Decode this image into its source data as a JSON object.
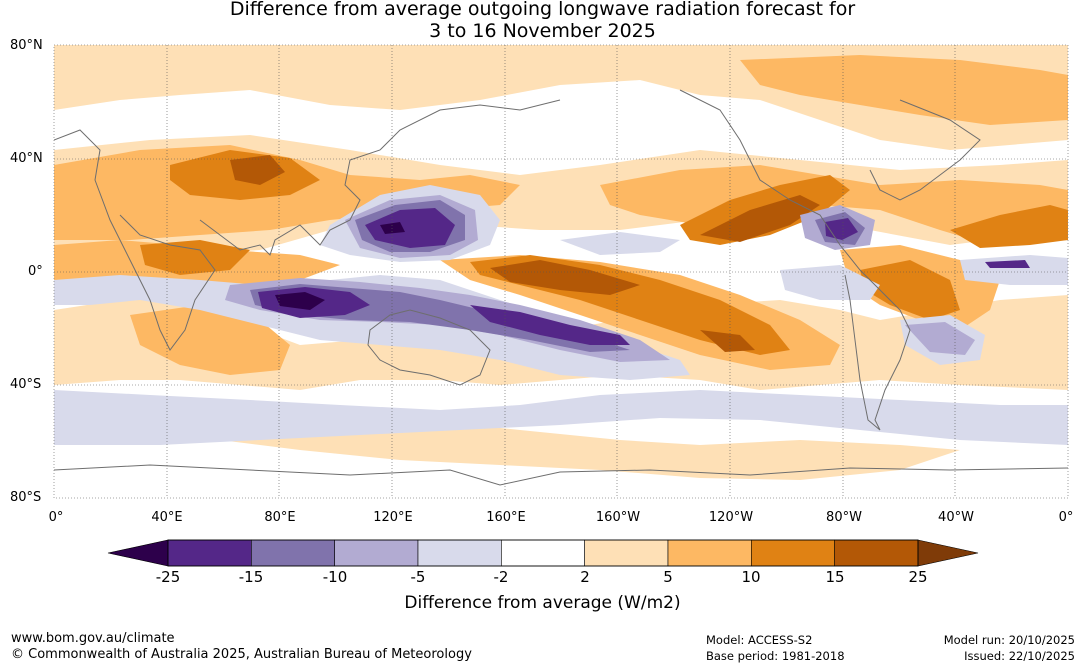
{
  "title": {
    "line1": "Difference from average outgoing longwave radiation forecast for",
    "line2": "3 to 16 November 2025"
  },
  "axes": {
    "lat_labels": [
      "80°N",
      "40°N",
      "0°",
      "40°S",
      "80°S"
    ],
    "lon_labels": [
      "0°",
      "40°E",
      "80°E",
      "120°E",
      "160°E",
      "160°W",
      "120°W",
      "80°W",
      "40°W",
      "0°"
    ]
  },
  "colorbar": {
    "title": "Difference from average (W/m2)",
    "ticks": [
      "-25",
      "-15",
      "-10",
      "-5",
      "-2",
      "2",
      "5",
      "10",
      "15",
      "25"
    ],
    "colors": [
      "#2d004b",
      "#542788",
      "#8073ac",
      "#b2abd2",
      "#d8daeb",
      "#ffffff",
      "#fee0b6",
      "#fdb863",
      "#e08214",
      "#b35806",
      "#7f3b08"
    ]
  },
  "footer": {
    "url": "www.bom.gov.au/climate",
    "copyright": "© Commonwealth of Australia 2025, Australian Bureau of Meteorology",
    "model": "Model: ACCESS-S2",
    "base_period": "Base period: 1981-2018",
    "model_run": "Model run: 20/10/2025",
    "issued": "Issued: 22/10/2025"
  }
}
